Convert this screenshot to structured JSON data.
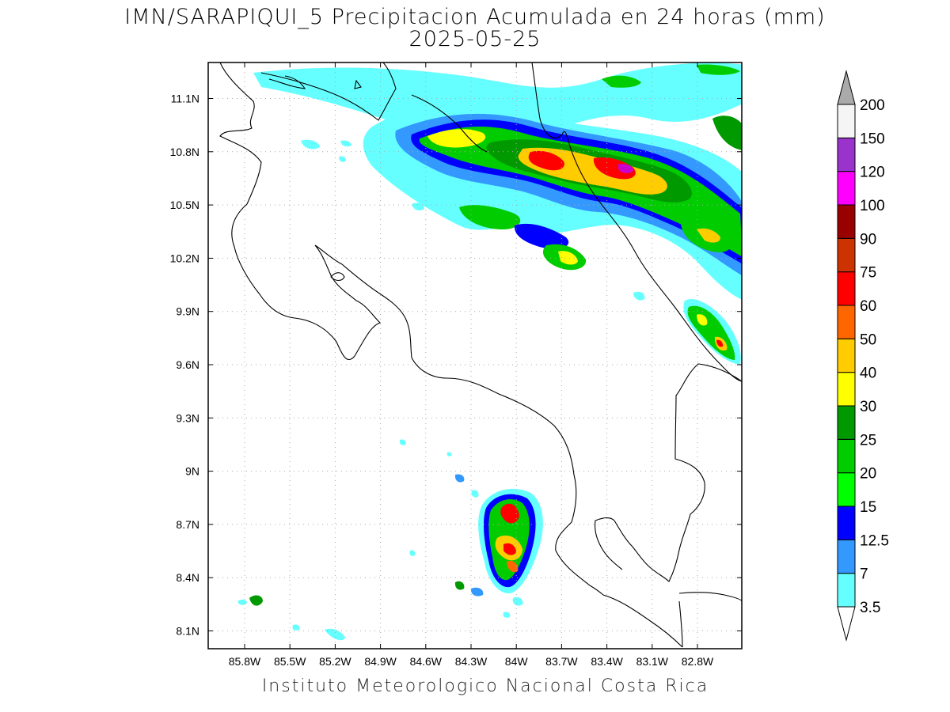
{
  "title": "IMN/SARAPIQUI_5 Precipitacion Acumulada en 24 horas (mm)",
  "subtitle": "2025-05-25",
  "credit": "Instituto Meteorologico Nacional Costa Rica",
  "map": {
    "lon_range": [
      -86.0,
      -83.0
    ],
    "lat_range": [
      8.0,
      11.3
    ],
    "lon_ticks": [
      "85.8W",
      "85.5W",
      "85.2W",
      "84.9W",
      "84.6W",
      "84.3W",
      "84W",
      "83.7W",
      "83.4W",
      "83.1W",
      "82.8W"
    ],
    "lat_ticks": [
      "11.1N",
      "10.8N",
      "10.5N",
      "10.2N",
      "9.9N",
      "9.6N",
      "9.3N",
      "9N",
      "8.7N",
      "8.4N",
      "8.1N"
    ],
    "grid": "dotted"
  },
  "legend": {
    "units": "mm",
    "levels": [
      {
        "label": "3.5",
        "color": "#66ffff"
      },
      {
        "label": "7",
        "color": "#3399ff"
      },
      {
        "label": "12.5",
        "color": "#0000ff"
      },
      {
        "label": "15",
        "color": "#00ff00"
      },
      {
        "label": "20",
        "color": "#00cc00"
      },
      {
        "label": "25",
        "color": "#009900"
      },
      {
        "label": "30",
        "color": "#ffff00"
      },
      {
        "label": "40",
        "color": "#ffcc00"
      },
      {
        "label": "50",
        "color": "#ff6600"
      },
      {
        "label": "60",
        "color": "#ff0000"
      },
      {
        "label": "75",
        "color": "#cc3300"
      },
      {
        "label": "90",
        "color": "#990000"
      },
      {
        "label": "100",
        "color": "#ff00ff"
      },
      {
        "label": "120",
        "color": "#9933cc"
      },
      {
        "label": "150",
        "color": "#f5f5f5"
      },
      {
        "label": "200",
        "color": "#aaaaaa"
      }
    ]
  }
}
